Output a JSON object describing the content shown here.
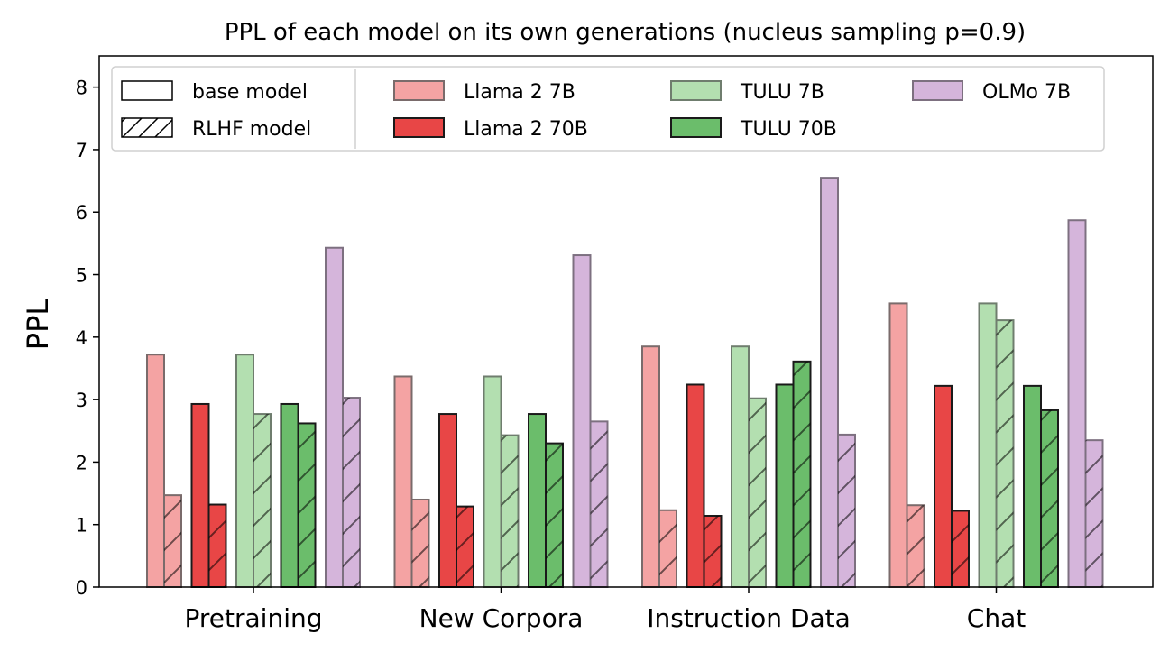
{
  "chart_data": {
    "type": "bar",
    "title": "PPL of each model on its own generations (nucleus sampling p=0.9)",
    "xlabel": "",
    "ylabel": "PPL",
    "ylim": [
      0,
      8.5
    ],
    "yticks": [
      0,
      1,
      2,
      3,
      4,
      5,
      6,
      7,
      8
    ],
    "categories": [
      "Pretraining",
      "New Corpora",
      "Instruction Data",
      "Chat"
    ],
    "series": [
      {
        "name": "Llama 2 7B",
        "color": "#f4a3a3",
        "edge": "#7a6b6b",
        "base": [
          3.72,
          3.37,
          3.85,
          4.54
        ],
        "rlhf": [
          1.47,
          1.4,
          1.23,
          1.31
        ]
      },
      {
        "name": "Llama 2 70B",
        "color": "#e84646",
        "edge": "#1a1a1a",
        "base": [
          2.93,
          2.77,
          3.24,
          3.22
        ],
        "rlhf": [
          1.32,
          1.29,
          1.14,
          1.22
        ]
      },
      {
        "name": "TULU 7B",
        "color": "#b3dfb0",
        "edge": "#6f7d6e",
        "base": [
          3.72,
          3.37,
          3.85,
          4.54
        ],
        "rlhf": [
          2.77,
          2.43,
          3.02,
          4.27
        ]
      },
      {
        "name": "TULU 70B",
        "color": "#6bbd6b",
        "edge": "#1a1a1a",
        "base": [
          2.93,
          2.77,
          3.24,
          3.22
        ],
        "rlhf": [
          2.62,
          2.3,
          3.61,
          2.83
        ]
      },
      {
        "name": "OLMo 7B",
        "color": "#d5b5db",
        "edge": "#7d7080",
        "base": [
          5.43,
          5.31,
          6.55,
          5.87
        ],
        "rlhf": [
          3.03,
          2.65,
          2.44,
          2.35
        ]
      }
    ],
    "legend": {
      "position": "top",
      "style_entries": [
        "base model",
        "RLHF model"
      ],
      "model_entries": [
        "Llama 2 7B",
        "Llama 2 70B",
        "TULU 7B",
        "TULU 70B",
        "OLMo 7B"
      ]
    },
    "grid": false
  }
}
